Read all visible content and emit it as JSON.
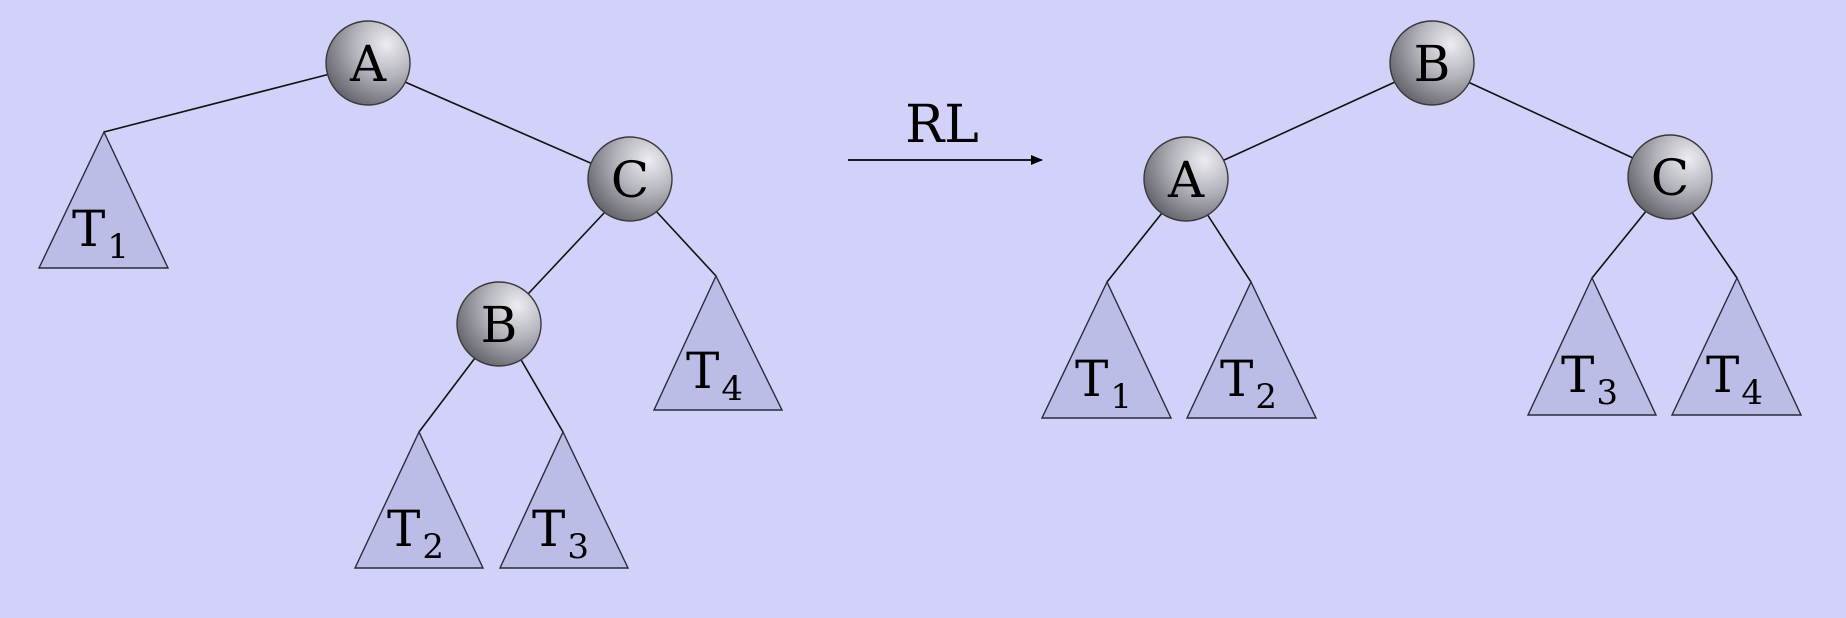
{
  "rotation_label": "RL",
  "before": {
    "nodes": {
      "A": "A",
      "C": "C",
      "B": "B"
    },
    "subtrees": [
      {
        "letter": "T",
        "index": "1"
      },
      {
        "letter": "T",
        "index": "4"
      },
      {
        "letter": "T",
        "index": "2"
      },
      {
        "letter": "T",
        "index": "3"
      }
    ]
  },
  "after": {
    "nodes": {
      "B": "B",
      "A": "A",
      "C": "C"
    },
    "subtrees": [
      {
        "letter": "T",
        "index": "1"
      },
      {
        "letter": "T",
        "index": "2"
      },
      {
        "letter": "T",
        "index": "3"
      },
      {
        "letter": "T",
        "index": "4"
      }
    ]
  },
  "colors": {
    "background": "#d1d1f9",
    "subtree_fill": "#bcbde6",
    "node_light": "#ececf2",
    "node_dark": "#5c5c64"
  }
}
